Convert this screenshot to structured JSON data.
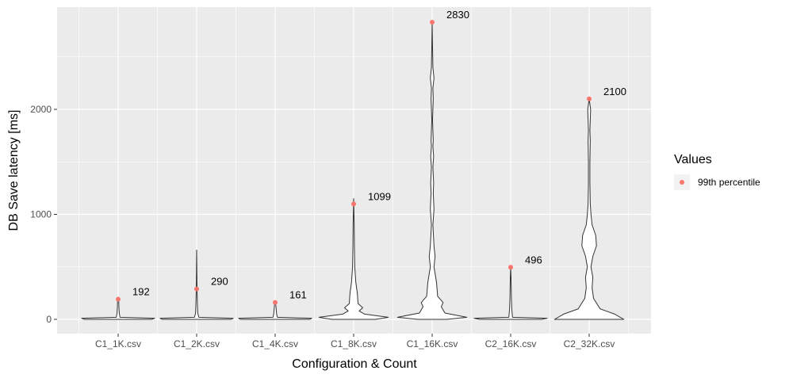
{
  "chart_data": {
    "type": "violin",
    "xlabel": "Configuration & Count",
    "ylabel": "DB Save latency [ms]",
    "categories": [
      "C1_1K.csv",
      "C1_2K.csv",
      "C1_4K.csv",
      "C1_8K.csv",
      "C1_16K.csv",
      "C2_16K.csv",
      "C2_32K.csv"
    ],
    "ylim": [
      -150,
      2960
    ],
    "yticks": [
      0,
      1000,
      2000
    ],
    "grid": true,
    "legend": {
      "title": "Values",
      "placement": "right",
      "entries": [
        {
          "name": "99th percentile",
          "color": "#f8766d"
        }
      ]
    },
    "series": [
      {
        "name": "99th percentile",
        "values": [
          192,
          290,
          161,
          1099,
          2830,
          496,
          2100
        ]
      }
    ],
    "annotations": [
      "192",
      "290",
      "161",
      "1099",
      "2830",
      "496",
      "2100"
    ],
    "violins": [
      {
        "category": "C1_1K.csv",
        "profile": [
          [
            0,
            0.92
          ],
          [
            10,
            1.0
          ],
          [
            20,
            0.05
          ],
          [
            60,
            0.03
          ],
          [
            120,
            0.02
          ],
          [
            192,
            0.015
          ],
          [
            200,
            0
          ]
        ]
      },
      {
        "category": "C1_2K.csv",
        "profile": [
          [
            0,
            0.95
          ],
          [
            10,
            1.0
          ],
          [
            20,
            0.06
          ],
          [
            60,
            0.03
          ],
          [
            150,
            0.02
          ],
          [
            300,
            0.01
          ],
          [
            660,
            0
          ]
        ]
      },
      {
        "category": "C1_4K.csv",
        "profile": [
          [
            0,
            0.95
          ],
          [
            10,
            1.0
          ],
          [
            20,
            0.06
          ],
          [
            50,
            0.04
          ],
          [
            90,
            0.03
          ],
          [
            130,
            0.02
          ],
          [
            170,
            0
          ]
        ]
      },
      {
        "category": "C1_8K.csv",
        "profile": [
          [
            0,
            0.6
          ],
          [
            20,
            0.95
          ],
          [
            50,
            0.3
          ],
          [
            80,
            0.15
          ],
          [
            110,
            0.25
          ],
          [
            150,
            0.12
          ],
          [
            250,
            0.1
          ],
          [
            350,
            0.06
          ],
          [
            500,
            0.03
          ],
          [
            700,
            0.02
          ],
          [
            900,
            0.015
          ],
          [
            1150,
            0
          ]
        ]
      },
      {
        "category": "C1_16K.csv",
        "profile": [
          [
            0,
            0.4
          ],
          [
            20,
            0.95
          ],
          [
            60,
            0.35
          ],
          [
            120,
            0.25
          ],
          [
            160,
            0.3
          ],
          [
            220,
            0.15
          ],
          [
            350,
            0.12
          ],
          [
            500,
            0.05
          ],
          [
            600,
            0.08
          ],
          [
            700,
            0.05
          ],
          [
            900,
            0.02
          ],
          [
            1050,
            0.05
          ],
          [
            1200,
            0.03
          ],
          [
            1300,
            0.04
          ],
          [
            1450,
            0.02
          ],
          [
            1550,
            0.04
          ],
          [
            1650,
            0.02
          ],
          [
            1700,
            0.03
          ],
          [
            1900,
            0.01
          ],
          [
            2100,
            0.03
          ],
          [
            2200,
            0.02
          ],
          [
            2300,
            0.05
          ],
          [
            2400,
            0.02
          ],
          [
            2600,
            0.01
          ],
          [
            2830,
            0
          ]
        ]
      },
      {
        "category": "C2_16K.csv",
        "profile": [
          [
            0,
            0.85
          ],
          [
            10,
            1.0
          ],
          [
            20,
            0.05
          ],
          [
            60,
            0.04
          ],
          [
            100,
            0.03
          ],
          [
            200,
            0.02
          ],
          [
            300,
            0.015
          ],
          [
            400,
            0.01
          ],
          [
            496,
            0
          ]
        ]
      },
      {
        "category": "C2_32K.csv",
        "profile": [
          [
            0,
            0.95
          ],
          [
            50,
            0.7
          ],
          [
            100,
            0.3
          ],
          [
            200,
            0.12
          ],
          [
            300,
            0.08
          ],
          [
            400,
            0.1
          ],
          [
            500,
            0.05
          ],
          [
            600,
            0.1
          ],
          [
            700,
            0.2
          ],
          [
            800,
            0.18
          ],
          [
            900,
            0.08
          ],
          [
            1000,
            0.05
          ],
          [
            1100,
            0.03
          ],
          [
            1300,
            0.02
          ],
          [
            1500,
            0.02
          ],
          [
            1700,
            0.03
          ],
          [
            1800,
            0.02
          ],
          [
            1900,
            0.03
          ],
          [
            2000,
            0.04
          ],
          [
            2100,
            0
          ]
        ]
      }
    ]
  }
}
